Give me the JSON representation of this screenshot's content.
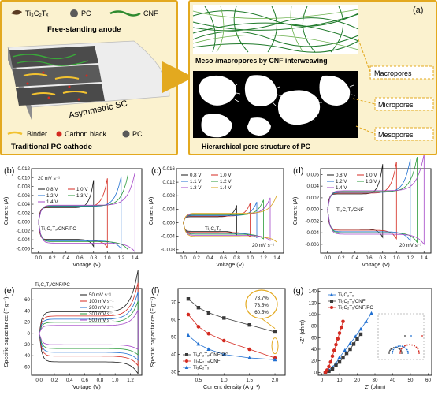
{
  "colors": {
    "accent_orange": "#e3a91f",
    "panel_bg": "#fbf2cf",
    "cnf_green": "#2f8a2f",
    "binder_yellow": "#f2c230",
    "carbon_red": "#d42a20",
    "dark_gray": "#3a3a3a"
  },
  "panel_a": {
    "letter": "(a)",
    "legend_top": [
      "Ti₃C₂Tₓ",
      "PC",
      "CNF"
    ],
    "anode_title": "Free-standing anode",
    "device_label": "Asymmetric SC",
    "legend_bottom": [
      "Binder",
      "Carbon black",
      "PC"
    ],
    "cathode_title": "Traditional PC cathode",
    "meso_caption": "Meso-/macropores by CNF interweaving",
    "hier_caption": "Hierarchical pore structure of PC",
    "pore_labels": [
      "Macropores",
      "Micropores",
      "Mesopores"
    ]
  },
  "chart_data": [
    {
      "id": "b",
      "type": "line",
      "letter": "(b)",
      "xlabel": "Voltage (V)",
      "ylabel": "Current (A)",
      "xlim": [
        -0.1,
        1.5
      ],
      "ylim": [
        -0.007,
        0.012
      ],
      "xticks": [
        "0.0",
        "0.2",
        "0.4",
        "0.6",
        "0.8",
        "1.0",
        "1.2",
        "1.4"
      ],
      "yticks": [
        "-0.006",
        "-0.004",
        "-0.002",
        "0.000",
        "0.002",
        "0.004",
        "0.006",
        "0.008",
        "0.010",
        "0.012"
      ],
      "annotation": "20 mV s⁻¹",
      "sample": "Ti₃C₂Tₓ/CNF/PC",
      "series": [
        {
          "name": "0.8 V",
          "color": "#1a1a1a",
          "vmax": 0.8,
          "hi": 0.0046,
          "lo": -0.0046
        },
        {
          "name": "1.0 V",
          "color": "#d42a20",
          "vmax": 1.0,
          "hi": 0.0048,
          "lo": -0.0048
        },
        {
          "name": "1.2 V",
          "color": "#1f6fd1",
          "vmax": 1.2,
          "hi": 0.005,
          "lo": -0.005
        },
        {
          "name": "1.3 V",
          "color": "#2a9a3a",
          "vmax": 1.3,
          "hi": 0.0052,
          "lo": -0.0052
        },
        {
          "name": "1.4 V",
          "color": "#a548c8",
          "vmax": 1.4,
          "hi": 0.0054,
          "lo": -0.0056
        }
      ]
    },
    {
      "id": "c",
      "type": "line",
      "letter": "(c)",
      "xlabel": "Voltage (V)",
      "ylabel": "Current (A)",
      "xlim": [
        -0.1,
        1.5
      ],
      "ylim": [
        -0.009,
        0.016
      ],
      "xticks": [
        "0.0",
        "0.2",
        "0.4",
        "0.6",
        "0.8",
        "1.0",
        "1.2",
        "1.4"
      ],
      "yticks": [
        "-0.008",
        "-0.004",
        "0.000",
        "0.004",
        "0.008",
        "0.012",
        "0.016"
      ],
      "annotation": "20 mV s⁻¹",
      "sample": "Ti₃C₂Tₓ",
      "series": [
        {
          "name": "0.8 V",
          "color": "#1a1a1a",
          "vmax": 0.8,
          "hi": 0.0025,
          "lo": -0.003
        },
        {
          "name": "1.0 V",
          "color": "#d42a20",
          "vmax": 1.0,
          "hi": 0.0028,
          "lo": -0.0034
        },
        {
          "name": "1.1 V",
          "color": "#1f6fd1",
          "vmax": 1.1,
          "hi": 0.003,
          "lo": -0.0037
        },
        {
          "name": "1.2 V",
          "color": "#2a9a3a",
          "vmax": 1.2,
          "hi": 0.0033,
          "lo": -0.004
        },
        {
          "name": "1.3 V",
          "color": "#a548c8",
          "vmax": 1.3,
          "hi": 0.0036,
          "lo": -0.0044
        },
        {
          "name": "1.4 V",
          "color": "#d9a21a",
          "vmax": 1.4,
          "hi": 0.004,
          "lo": -0.0048
        }
      ]
    },
    {
      "id": "d",
      "type": "line",
      "letter": "(d)",
      "xlabel": "Voltage (V)",
      "ylabel": "Current (A)",
      "xlim": [
        -0.1,
        1.5
      ],
      "ylim": [
        -0.0075,
        0.007
      ],
      "xticks": [
        "0.0",
        "0.2",
        "0.4",
        "0.6",
        "0.8",
        "1.0",
        "1.2",
        "1.4"
      ],
      "yticks": [
        "-0.006",
        "-0.004",
        "-0.002",
        "0.000",
        "0.002",
        "0.004",
        "0.006"
      ],
      "annotation": "20 mV s⁻¹",
      "sample": "Ti₃C₂Tₓ/CNF",
      "series": [
        {
          "name": "0.8 V",
          "color": "#1a1a1a",
          "vmax": 0.8,
          "hi": 0.0038,
          "lo": -0.004
        },
        {
          "name": "1.0 V",
          "color": "#d42a20",
          "vmax": 1.0,
          "hi": 0.004,
          "lo": -0.0042
        },
        {
          "name": "1.2 V",
          "color": "#1f6fd1",
          "vmax": 1.2,
          "hi": 0.0042,
          "lo": -0.0045
        },
        {
          "name": "1.3 V",
          "color": "#2a9a3a",
          "vmax": 1.3,
          "hi": 0.0044,
          "lo": -0.0047
        },
        {
          "name": "1.4 V",
          "color": "#a548c8",
          "vmax": 1.4,
          "hi": 0.0046,
          "lo": -0.005
        }
      ]
    },
    {
      "id": "e",
      "type": "line",
      "letter": "(e)",
      "xlabel": "Voltage (V)",
      "ylabel": "Specific capacitance (F g⁻¹)",
      "xlim": [
        -0.1,
        1.35
      ],
      "ylim": [
        -75,
        80
      ],
      "xticks": [
        "0.0",
        "0.2",
        "0.4",
        "0.6",
        "0.8",
        "1.0",
        "1.2"
      ],
      "yticks": [
        "-60",
        "-40",
        "-20",
        "0",
        "20",
        "40",
        "60"
      ],
      "sample": "Ti₃C₂Tₓ/CNF/PC",
      "series": [
        {
          "name": "50 mV s⁻¹",
          "color": "#1a1a1a",
          "vmax": 1.3,
          "hi": 55,
          "lo": -60
        },
        {
          "name": "100 mV s⁻¹",
          "color": "#d42a20",
          "vmax": 1.3,
          "hi": 44,
          "lo": -48
        },
        {
          "name": "200 mV s⁻¹",
          "color": "#1f6fd1",
          "vmax": 1.3,
          "hi": 36,
          "lo": -40
        },
        {
          "name": "300 mV s⁻¹",
          "color": "#2a9a3a",
          "vmax": 1.3,
          "hi": 28,
          "lo": -32
        },
        {
          "name": "500 mV s⁻¹",
          "color": "#a548c8",
          "vmax": 1.3,
          "hi": 20,
          "lo": -24
        }
      ]
    },
    {
      "id": "f",
      "type": "line",
      "letter": "(f)",
      "xlabel": "Current density (A g⁻¹)",
      "ylabel": "Specific capacitance (F g⁻¹)",
      "xlim": [
        0.1,
        2.2
      ],
      "ylim": [
        28,
        78
      ],
      "xticks": [
        "0.5",
        "1.0",
        "1.5",
        "2.0"
      ],
      "yticks": [
        "30",
        "40",
        "50",
        "60",
        "70"
      ],
      "retention": [
        "73.7%",
        "73.5%",
        "60.5%"
      ],
      "series": [
        {
          "name": "Ti₃C₂Tₓ/CNF/PC",
          "color": "#3a3a3a",
          "marker": "square",
          "x": [
            0.3,
            0.5,
            0.7,
            1.0,
            1.5,
            2.0
          ],
          "y": [
            72,
            67,
            64,
            61,
            57,
            53
          ]
        },
        {
          "name": "Ti₃C₂Tₓ/CNF",
          "color": "#d42a20",
          "marker": "circle",
          "x": [
            0.3,
            0.5,
            0.7,
            1.0,
            1.5,
            2.0
          ],
          "y": [
            63,
            56,
            52,
            48,
            43,
            38
          ]
        },
        {
          "name": "Ti₃C₂Tₓ",
          "color": "#1f6fd1",
          "marker": "triangle",
          "x": [
            0.3,
            0.5,
            0.7,
            1.0,
            1.5,
            2.0
          ],
          "y": [
            51,
            46,
            43,
            40,
            38,
            37
          ]
        }
      ]
    },
    {
      "id": "g",
      "type": "scatter",
      "letter": "(g)",
      "xlabel": "Z' (ohm)",
      "ylabel": "-Z'' (ohm)",
      "xlim": [
        -2,
        62
      ],
      "ylim": [
        -5,
        145
      ],
      "xticks": [
        "0",
        "10",
        "20",
        "30",
        "40",
        "50",
        "60"
      ],
      "yticks": [
        "0",
        "20",
        "40",
        "60",
        "80",
        "100",
        "120",
        "140"
      ],
      "series": [
        {
          "name": "Ti₃C₂Tₓ",
          "color": "#1f6fd1",
          "marker": "triangle",
          "x": [
            2,
            4,
            6,
            8,
            10,
            13,
            16,
            19,
            22,
            25,
            28
          ],
          "y": [
            0,
            4,
            9,
            16,
            26,
            38,
            50,
            62,
            75,
            88,
            102
          ]
        },
        {
          "name": "Ti₃C₂Tₓ/CNF",
          "color": "#3a3a3a",
          "marker": "square",
          "x": [
            2,
            4,
            6,
            8,
            10,
            12,
            14,
            16,
            18,
            20,
            22
          ],
          "y": [
            0,
            2,
            6,
            12,
            18,
            25,
            33,
            40,
            49,
            58,
            66
          ]
        },
        {
          "name": "Ti₃C₂Tₓ/CNF/PC",
          "color": "#d42a20",
          "marker": "circle",
          "x": [
            2,
            3,
            4,
            5,
            6,
            7,
            8,
            9,
            10,
            11,
            12
          ],
          "y": [
            0,
            4,
            10,
            18,
            28,
            38,
            48,
            58,
            68,
            78,
            88
          ]
        }
      ]
    }
  ]
}
